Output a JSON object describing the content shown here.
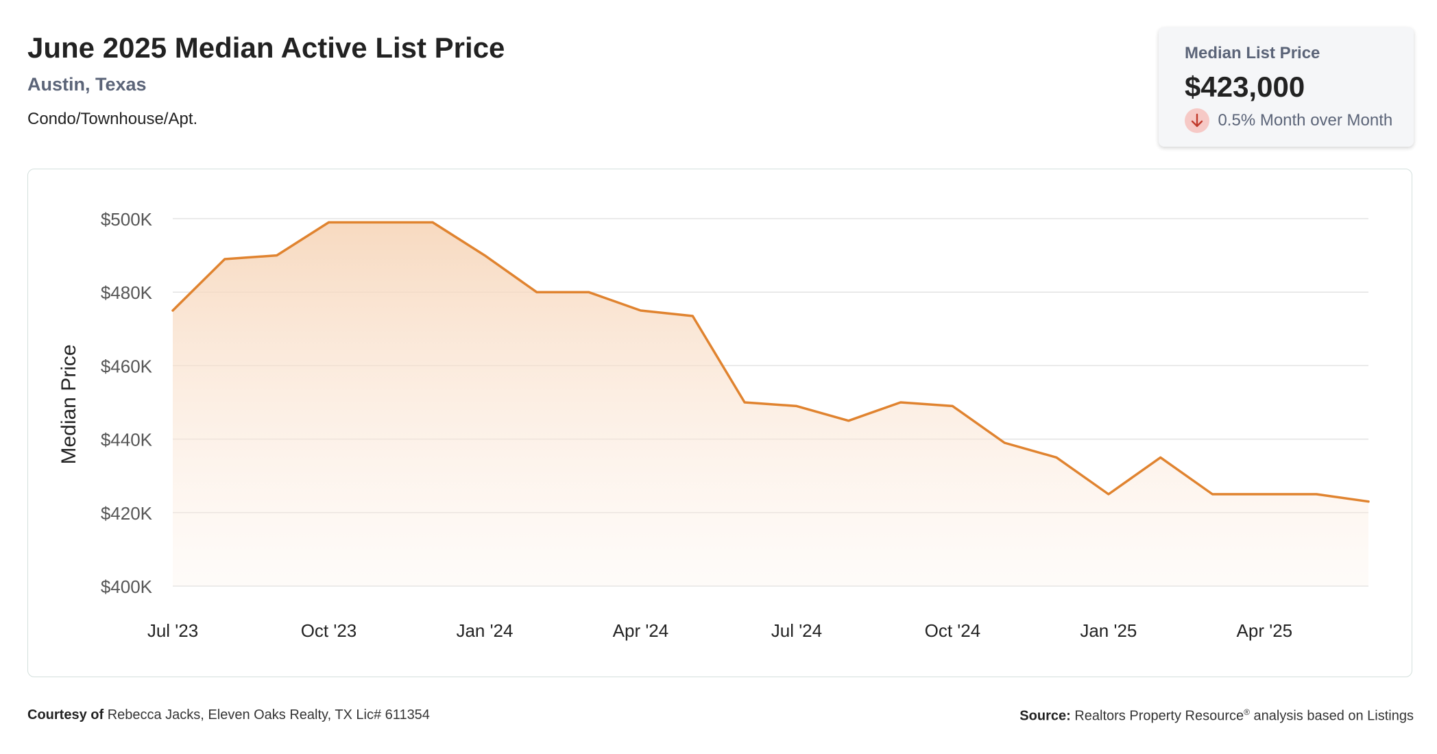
{
  "header": {
    "title": "June 2025 Median Active List Price",
    "location": "Austin, Texas",
    "property_type": "Condo/Townhouse/Apt."
  },
  "kpi": {
    "label": "Median List Price",
    "value": "$423,000",
    "change": "0.5% Month over Month",
    "direction": "down",
    "icon": "arrow-down-icon"
  },
  "footer": {
    "courtesy_label": "Courtesy of",
    "courtesy_text": "Rebecca Jacks, Eleven Oaks Realty, TX Lic# 611354",
    "source_label": "Source:",
    "source_text_pre": "Realtors Property Resource",
    "source_registered": "®",
    "source_text_post": "analysis based on Listings"
  },
  "colors": {
    "line": "#e0832f",
    "grid": "#e3e3e3",
    "title": "#222222",
    "subtitle": "#5b6478"
  },
  "chart_data": {
    "type": "area",
    "x": [
      "2023-07",
      "2023-08",
      "2023-09",
      "2023-10",
      "2023-11",
      "2023-12",
      "2024-01",
      "2024-02",
      "2024-03",
      "2024-04",
      "2024-05",
      "2024-06",
      "2024-07",
      "2024-08",
      "2024-09",
      "2024-10",
      "2024-11",
      "2024-12",
      "2025-01",
      "2025-02",
      "2025-03",
      "2025-04",
      "2025-05",
      "2025-06"
    ],
    "series": [
      {
        "values": [
          475000,
          489000,
          490000,
          499000,
          499000,
          499000,
          490000,
          480000,
          480000,
          475000,
          473500,
          450000,
          449000,
          445000,
          450000,
          449000,
          439000,
          435000,
          425000,
          435000,
          425000,
          425000,
          425000,
          423000
        ]
      }
    ],
    "ylabel": "Median Price",
    "ylim": [
      400000,
      500000
    ],
    "y_ticks": [
      {
        "value": 500000,
        "label": "$500K"
      },
      {
        "value": 480000,
        "label": "$480K"
      },
      {
        "value": 460000,
        "label": "$460K"
      },
      {
        "value": 440000,
        "label": "$440K"
      },
      {
        "value": 420000,
        "label": "$420K"
      },
      {
        "value": 400000,
        "label": "$400K"
      }
    ],
    "x_ticks": [
      {
        "value": "2023-07",
        "label": "Jul '23"
      },
      {
        "value": "2023-10",
        "label": "Oct '23"
      },
      {
        "value": "2024-01",
        "label": "Jan '24"
      },
      {
        "value": "2024-04",
        "label": "Apr '24"
      },
      {
        "value": "2024-07",
        "label": "Jul '24"
      },
      {
        "value": "2024-10",
        "label": "Oct '24"
      },
      {
        "value": "2025-01",
        "label": "Jan '25"
      },
      {
        "value": "2025-04",
        "label": "Apr '25"
      }
    ],
    "grid": true,
    "legend": false
  }
}
